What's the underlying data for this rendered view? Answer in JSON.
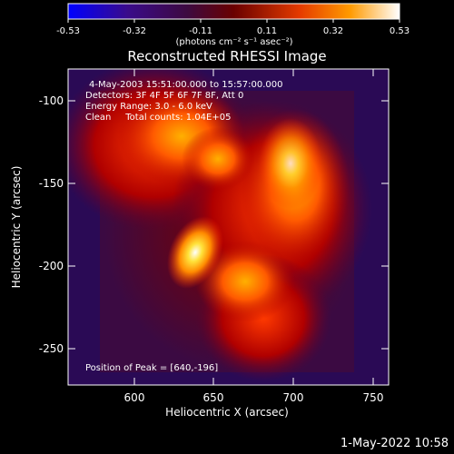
{
  "chart_data": {
    "type": "heatmap",
    "title": "Reconstructed RHESSI Image",
    "xlabel": "Heliocentric X (arcsec)",
    "ylabel": "Heliocentric Y (arcsec)",
    "xlim": [
      561,
      752
    ],
    "ylim": [
      -272,
      -83
    ],
    "xticks": [
      600,
      650,
      700,
      750
    ],
    "yticks": [
      -100,
      -150,
      -200,
      -250
    ],
    "colorbar": {
      "ticks": [
        "-0.53",
        "-0.32",
        "-0.11",
        "0.11",
        "0.32",
        "0.53"
      ],
      "units": "(photons cm⁻² s⁻¹ asec⁻²)",
      "range": [
        -0.53,
        0.53
      ]
    },
    "annotations": [
      "4-May-2003 15:51:00.000 to 15:57:00.000",
      "Detectors: 3F 4F 5F 6F 7F 8F, Att 0",
      "Energy Range: 3.0 - 6.0 keV",
      "Clean     Total counts: 1.04E+05"
    ],
    "peak_label": "Position of Peak = [640,-196]",
    "peak": {
      "x": 640,
      "y": -196
    }
  },
  "footer": {
    "timestamp": "1-May-2022 10:58"
  }
}
